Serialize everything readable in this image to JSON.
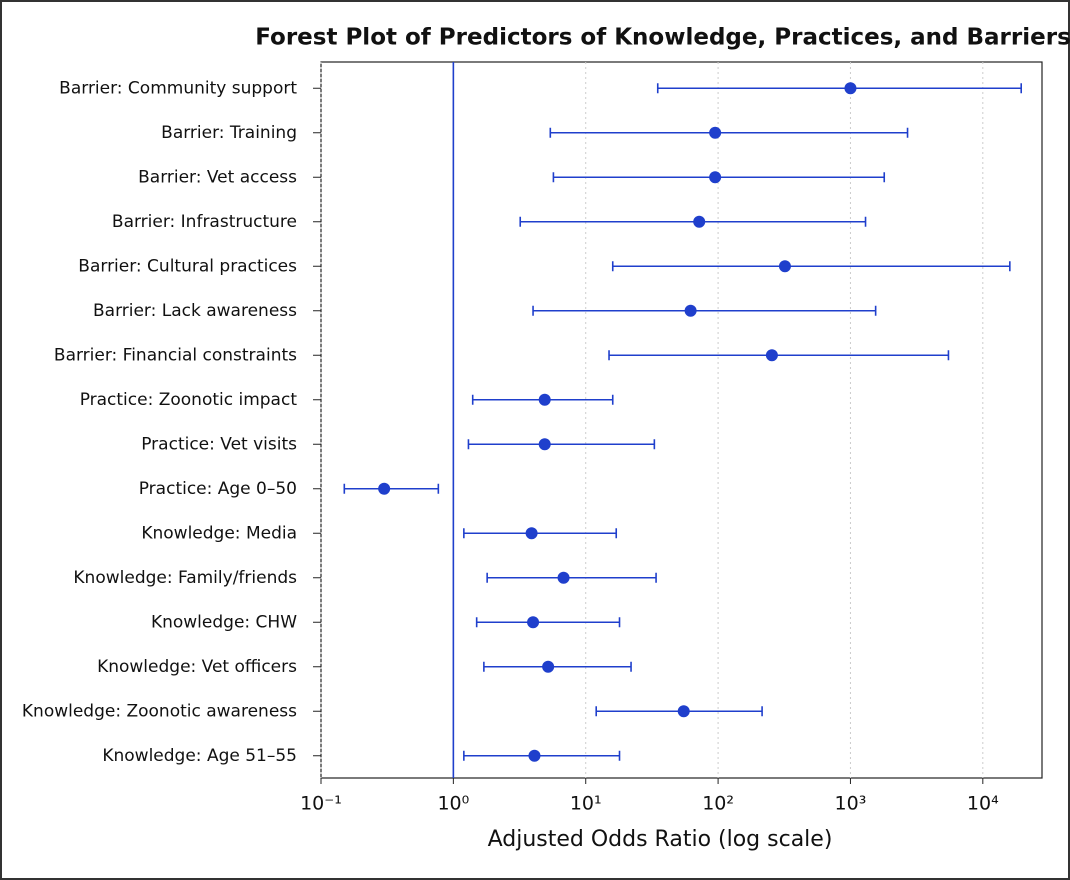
{
  "chart_data": {
    "type": "forest",
    "title": "Forest Plot of Predictors of Knowledge, Practices, and Barriers",
    "x_label": "Adjusted Odds Ratio (log scale)",
    "xscale": "log",
    "xlim": [
      0.1,
      28000
    ],
    "xticks": [
      {
        "value": 0.1,
        "label": "10⁻¹"
      },
      {
        "value": 1,
        "label": "10⁰"
      },
      {
        "value": 10,
        "label": "10¹"
      },
      {
        "value": 100,
        "label": "10²"
      },
      {
        "value": 1000,
        "label": "10³"
      },
      {
        "value": 10000,
        "label": "10⁴"
      }
    ],
    "grid": true,
    "reference_line": 1,
    "color": "#1f3fcc",
    "categories": [
      "Barrier: Community support",
      "Barrier: Training",
      "Barrier: Vet access",
      "Barrier: Infrastructure",
      "Barrier: Cultural practices",
      "Barrier: Lack awareness",
      "Barrier: Financial constraints",
      "Practice: Zoonotic impact",
      "Practice: Vet visits",
      "Practice: Age 0–50",
      "Knowledge: Media",
      "Knowledge: Family/friends",
      "Knowledge: CHW",
      "Knowledge: Vet officers",
      "Knowledge: Zoonotic awareness",
      "Knowledge: Age 51–55"
    ],
    "values": [
      1000,
      95,
      95,
      72,
      320,
      62,
      255,
      4.9,
      4.9,
      0.3,
      3.9,
      6.8,
      4.0,
      5.2,
      55,
      4.1
    ],
    "lower": [
      35,
      5.4,
      5.7,
      3.2,
      16,
      4,
      15,
      1.4,
      1.3,
      0.15,
      1.2,
      1.8,
      1.5,
      1.7,
      12,
      1.2
    ],
    "upper": [
      19500,
      2700,
      1800,
      1300,
      16000,
      1550,
      5500,
      16,
      33,
      0.77,
      17,
      34,
      18,
      22,
      215,
      18
    ]
  }
}
